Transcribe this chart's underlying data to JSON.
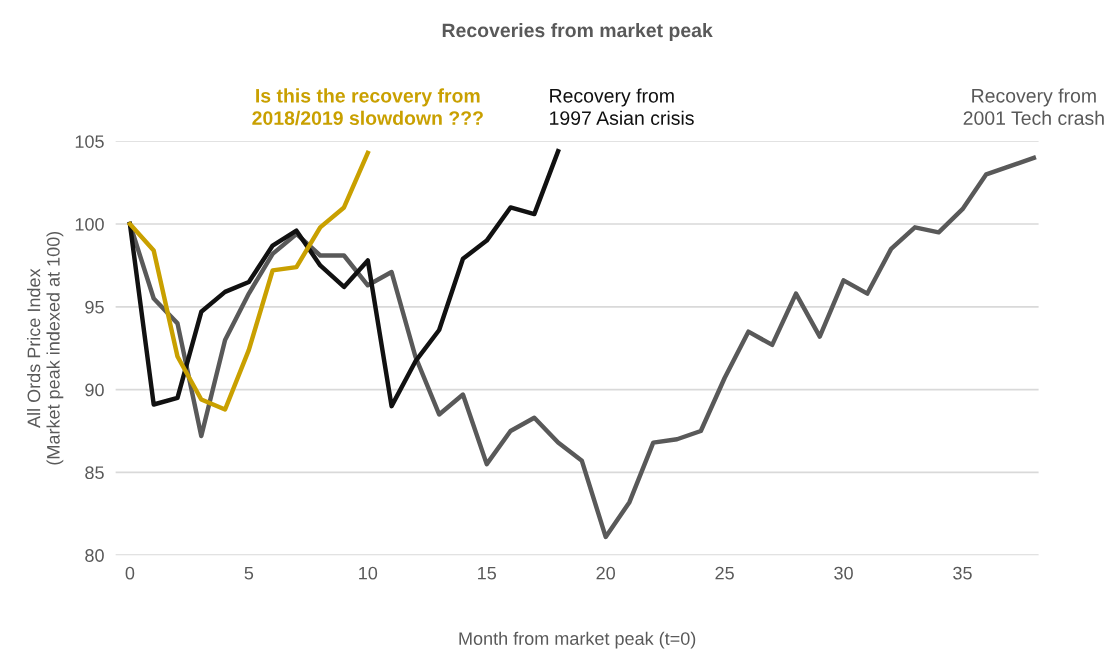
{
  "chart_data": {
    "type": "line",
    "title": "Recoveries from market peak",
    "xlabel": "Month from market peak (t=0)",
    "ylabel": "All Ords Price Index\n(Market peak indexed at 100)",
    "series": [
      {
        "name": "Recovery from\n2001 Tech crash",
        "color": "#595959",
        "x": [
          0,
          1,
          2,
          3,
          4,
          5,
          6,
          7,
          8,
          9,
          10,
          11,
          12,
          13,
          14,
          15,
          16,
          17,
          18,
          19,
          20,
          21,
          22,
          23,
          24,
          25,
          26,
          27,
          28,
          29,
          30,
          31,
          32,
          33,
          34,
          35,
          36,
          37,
          38
        ],
        "values": [
          100,
          95.5,
          94.0,
          87.2,
          93.0,
          95.8,
          98.2,
          99.4,
          98.1,
          98.1,
          96.3,
          97.1,
          92.0,
          88.5,
          89.7,
          85.5,
          87.5,
          88.3,
          86.8,
          85.7,
          81.1,
          83.2,
          86.8,
          87.0,
          87.5,
          90.7,
          93.5,
          92.7,
          95.8,
          93.2,
          96.6,
          95.8,
          98.5,
          99.8,
          99.5,
          100.9,
          103.0,
          103.5,
          104.0
        ]
      },
      {
        "name": "Recovery from\n1997 Asian crisis",
        "color": "#111111",
        "x": [
          0,
          1,
          2,
          3,
          4,
          5,
          6,
          7,
          8,
          9,
          10,
          11,
          12,
          13,
          14,
          15,
          16,
          17,
          18
        ],
        "values": [
          100,
          89.1,
          89.5,
          94.7,
          95.9,
          96.5,
          98.7,
          99.6,
          97.5,
          96.2,
          97.8,
          89.0,
          91.7,
          93.6,
          97.9,
          99.0,
          101.0,
          100.6,
          104.4
        ]
      },
      {
        "name": "Is this the recovery from\n2018/2019 slowdown ???",
        "color": "#c9a000",
        "x": [
          0,
          1,
          2,
          3,
          4,
          5,
          6,
          7,
          8,
          9,
          10
        ],
        "values": [
          100,
          98.4,
          92.0,
          89.4,
          88.8,
          92.4,
          97.2,
          97.4,
          99.8,
          101.0,
          104.3
        ]
      }
    ],
    "xlim": [
      -0.6,
      38.2
    ],
    "ylim": [
      80,
      105
    ],
    "xticks": [
      0,
      5,
      10,
      15,
      20,
      25,
      30,
      35
    ],
    "yticks": [
      80,
      85,
      90,
      95,
      100,
      105
    ],
    "grid": "y",
    "legend": false,
    "marker": "none",
    "line_style": "solid"
  }
}
